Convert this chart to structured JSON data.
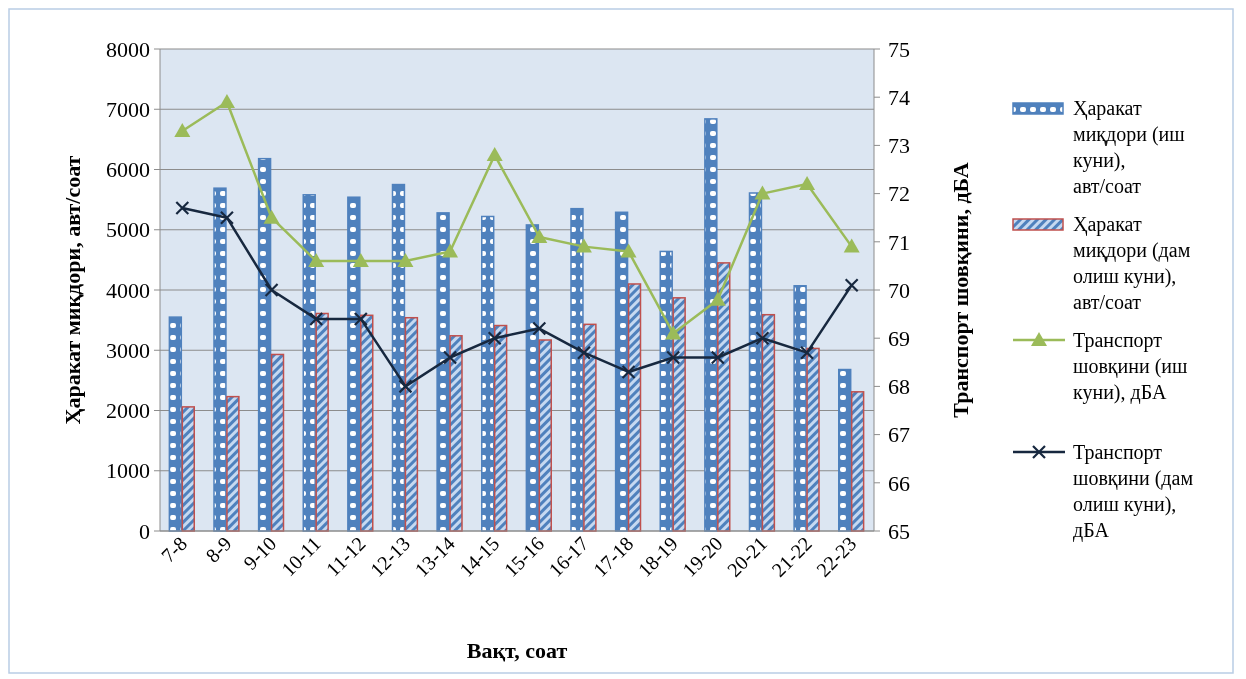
{
  "chart_data": {
    "type": "bar",
    "xlabel": "Вақт, соат",
    "ylabel": "Ҳаракат миқдори, авт/соат",
    "y2label": "Транспорт шовқини, дБА",
    "categories": [
      "7-8",
      "8-9",
      "9-10",
      "10-11",
      "11-12",
      "12-13",
      "13-14",
      "14-15",
      "15-16",
      "16-17",
      "17-18",
      "18-19",
      "19-20",
      "20-21",
      "21-22",
      "22-23"
    ],
    "series": [
      {
        "name": "Ҳаракат миқдори (иш куни), авт/соат",
        "color": "#4f81bd",
        "values": [
          3550,
          5690,
          6180,
          5580,
          5540,
          5750,
          5280,
          5220,
          5080,
          5350,
          5290,
          4640,
          6840,
          5610,
          4070,
          2680
        ]
      },
      {
        "name": "Ҳаракат миқдори (дам олиш куни), авт/соат",
        "color": "#c0504d",
        "values": [
          2060,
          2230,
          2930,
          3610,
          3580,
          3540,
          3240,
          3410,
          3170,
          3430,
          4100,
          3870,
          4450,
          3590,
          3030,
          2310
        ]
      },
      {
        "name": "Транспорт шовқини (иш куни), дБА",
        "type": "line",
        "axis": "y2",
        "marker": "triangle",
        "color": "#9bbb59",
        "values": [
          73.3,
          73.9,
          71.5,
          70.6,
          70.6,
          70.6,
          70.8,
          72.8,
          71.1,
          70.9,
          70.8,
          69.1,
          69.8,
          72.0,
          72.2,
          70.9
        ]
      },
      {
        "name": "Транспорт шовқини (дам олиш куни), дБА",
        "type": "line",
        "axis": "y2",
        "marker": "cross",
        "color": "#17283f",
        "values": [
          71.7,
          71.5,
          70.0,
          69.4,
          69.4,
          68.0,
          68.6,
          69.0,
          69.2,
          68.7,
          68.3,
          68.6,
          68.6,
          69.0,
          68.7,
          70.1
        ]
      }
    ],
    "ylim": [
      0,
      8000
    ],
    "yticks": [
      0,
      1000,
      2000,
      3000,
      4000,
      5000,
      6000,
      7000,
      8000
    ],
    "y2lim": [
      65,
      75
    ],
    "y2ticks": [
      65,
      66,
      67,
      68,
      69,
      70,
      71,
      72,
      73,
      74,
      75
    ],
    "grid": "y",
    "legend": "right"
  }
}
